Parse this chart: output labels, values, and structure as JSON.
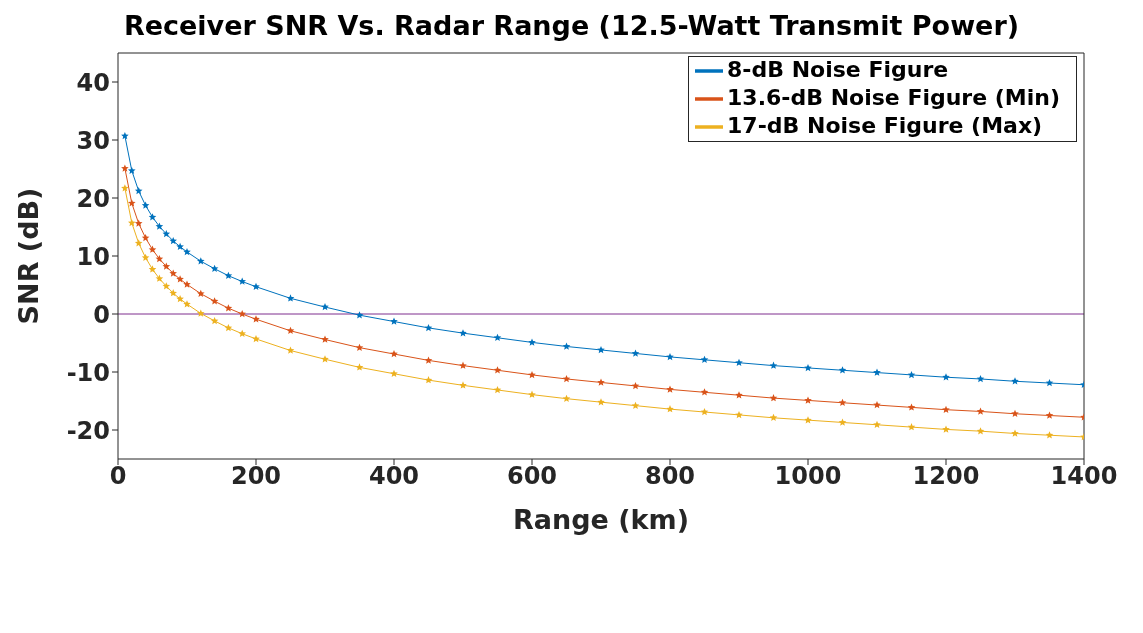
{
  "chart_data": {
    "type": "line",
    "title": "Receiver SNR Vs. Radar Range (12.5-Watt Transmit Power)",
    "xlabel": "Range (km)",
    "ylabel": "SNR (dB)",
    "x": [
      10,
      20,
      30,
      40,
      50,
      60,
      70,
      80,
      90,
      100,
      120,
      140,
      160,
      180,
      200,
      250,
      300,
      350,
      400,
      450,
      500,
      550,
      600,
      650,
      700,
      750,
      800,
      850,
      900,
      950,
      1000,
      1050,
      1100,
      1150,
      1200,
      1250,
      1300,
      1350,
      1400
    ],
    "series": [
      {
        "name": "8-dB Noise Figure",
        "color": "#0072bd",
        "values": [
          30.7,
          24.7,
          21.2,
          18.7,
          16.7,
          15.1,
          13.8,
          12.6,
          11.6,
          10.7,
          9.1,
          7.8,
          6.6,
          5.6,
          4.7,
          2.7,
          1.2,
          -0.2,
          -1.3,
          -2.4,
          -3.3,
          -4.1,
          -4.9,
          -5.6,
          -6.2,
          -6.8,
          -7.4,
          -7.9,
          -8.4,
          -8.9,
          -9.3,
          -9.7,
          -10.1,
          -10.5,
          -10.9,
          -11.2,
          -11.6,
          -11.9,
          -12.2
        ]
      },
      {
        "name": "13.6-dB Noise Figure (Min)",
        "color": "#d95319",
        "values": [
          25.1,
          19.1,
          15.6,
          13.1,
          11.1,
          9.5,
          8.2,
          7.0,
          6.0,
          5.1,
          3.5,
          2.2,
          1.0,
          0.0,
          -0.9,
          -2.9,
          -4.4,
          -5.8,
          -6.9,
          -8.0,
          -8.9,
          -9.7,
          -10.5,
          -11.2,
          -11.8,
          -12.4,
          -13.0,
          -13.5,
          -14.0,
          -14.5,
          -14.9,
          -15.3,
          -15.7,
          -16.1,
          -16.5,
          -16.8,
          -17.2,
          -17.5,
          -17.8
        ]
      },
      {
        "name": "17-dB Noise Figure (Max)",
        "color": "#edb120",
        "values": [
          21.7,
          15.7,
          12.2,
          9.7,
          7.7,
          6.1,
          4.8,
          3.6,
          2.6,
          1.7,
          0.1,
          -1.2,
          -2.4,
          -3.4,
          -4.3,
          -6.3,
          -7.8,
          -9.2,
          -10.3,
          -11.4,
          -12.3,
          -13.1,
          -13.9,
          -14.6,
          -15.2,
          -15.8,
          -16.4,
          -16.9,
          -17.4,
          -17.9,
          -18.3,
          -18.7,
          -19.1,
          -19.5,
          -19.9,
          -20.2,
          -20.6,
          -20.9,
          -21.2
        ]
      }
    ],
    "xlim": [
      0,
      1400
    ],
    "xticks": [
      0,
      200,
      400,
      600,
      800,
      1000,
      1200,
      1400
    ],
    "ylim": [
      -25,
      45
    ],
    "yticks": [
      -20,
      -10,
      0,
      10,
      20,
      30,
      40
    ],
    "ref_lines": [
      {
        "axis": "y",
        "value": 0,
        "color": "#7e2f8e"
      }
    ],
    "marker": "star",
    "legend": "top right",
    "grid": false
  }
}
